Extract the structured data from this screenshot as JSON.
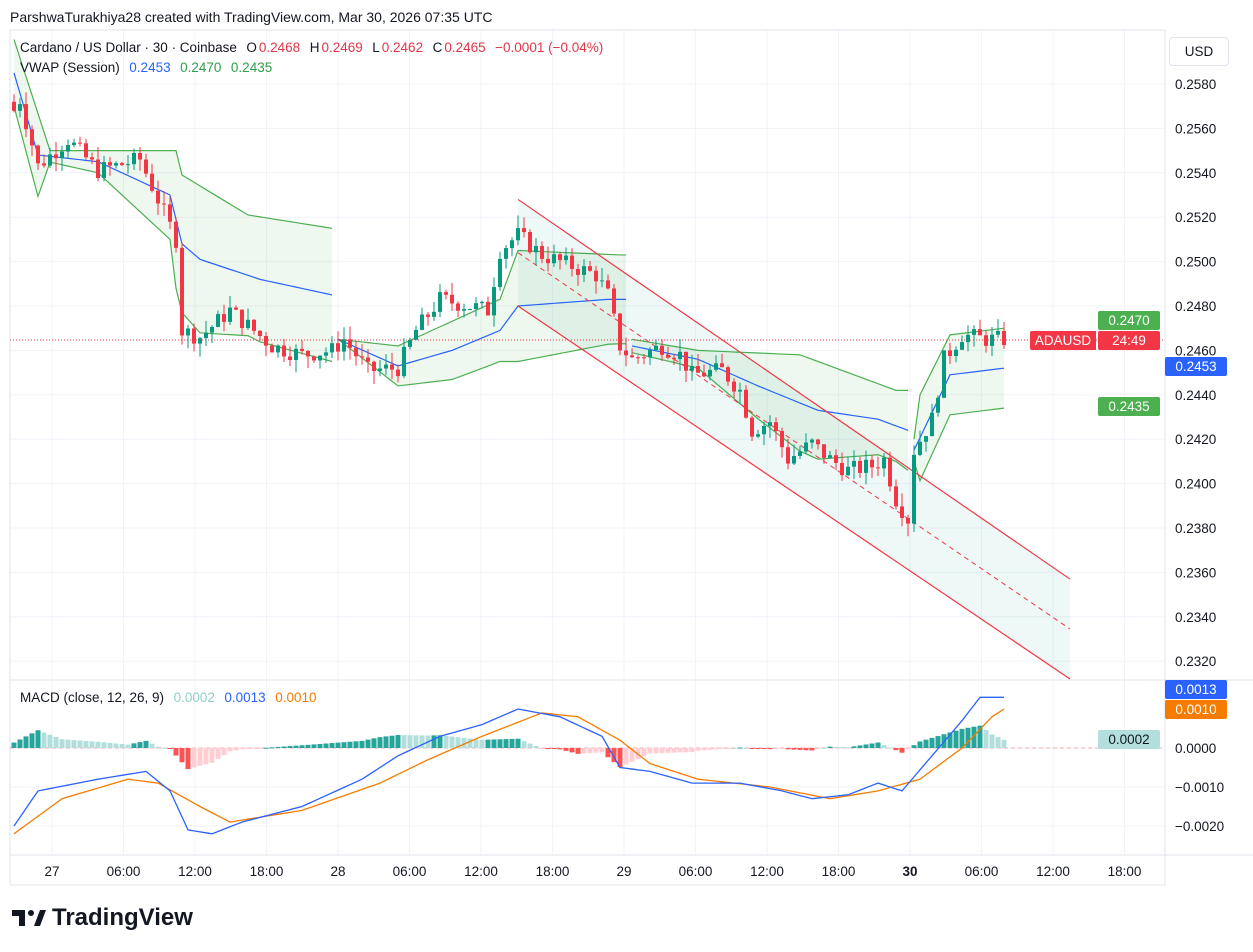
{
  "credit": "ParshwaTurakhiya28 created with TradingView.com, Mar 30, 2026 07:35 UTC",
  "legend": {
    "symbol": "Cardano / US Dollar · 30 · Coinbase",
    "o_label": "O",
    "o": "0.2468",
    "h_label": "H",
    "h": "0.2469",
    "l_label": "L",
    "l": "0.2462",
    "c_label": "C",
    "c": "0.2465",
    "change": "−0.0001 (−0.04%)",
    "vwap_label": "VWAP (Session)",
    "vwap": "0.2453",
    "vwap_upper": "0.2470",
    "vwap_lower": "0.2435",
    "macd_label": "MACD (close, 12, 26, 9)",
    "macd_hist": "0.0002",
    "macd": "0.0013",
    "macd_signal": "0.0010"
  },
  "currency_button": "USD",
  "price_tag": {
    "symbol": "ADAUSD",
    "countdown": "24:49"
  },
  "tags": {
    "upper": "0.2470",
    "vwap": "0.2453",
    "lower": "0.2435",
    "macd": "0.0013",
    "signal": "0.0010",
    "hist": "0.0002"
  },
  "logo_text": "TradingView",
  "colors": {
    "up": "#089981",
    "down": "#f23645",
    "vwap": "#2962ff",
    "band": "#4caf50",
    "channel": "#f23645",
    "macd": "#2962ff",
    "signal": "#f57c00"
  },
  "chart_data": {
    "type": "candlestick",
    "title": "Cardano / US Dollar · 30 · Coinbase",
    "interval_minutes": 30,
    "price_ticks": [
      "0.2580",
      "0.2560",
      "0.2540",
      "0.2520",
      "0.2500",
      "0.2480",
      "0.2460",
      "0.2440",
      "0.2420",
      "0.2400",
      "0.2380",
      "0.2360",
      "0.2340",
      "0.2320"
    ],
    "ylim": [
      0.231,
      0.26
    ],
    "time_ticks": [
      "27",
      "06:00",
      "12:00",
      "18:00",
      "28",
      "06:00",
      "12:00",
      "18:00",
      "29",
      "06:00",
      "12:00",
      "18:00",
      "30",
      "06:00",
      "12:00",
      "18:00"
    ],
    "bold_tick": "30",
    "bars": 166,
    "close_keypoints": [
      [
        0,
        0.2568
      ],
      [
        1,
        0.2573
      ],
      [
        4,
        0.2543
      ],
      [
        9,
        0.2555
      ],
      [
        14,
        0.2541
      ],
      [
        21,
        0.2546
      ],
      [
        24,
        0.2528
      ],
      [
        27,
        0.251
      ],
      [
        28,
        0.2469
      ],
      [
        31,
        0.2466
      ],
      [
        36,
        0.2478
      ],
      [
        43,
        0.2462
      ],
      [
        48,
        0.2458
      ],
      [
        53,
        0.246
      ],
      [
        55,
        0.2465
      ],
      [
        59,
        0.2451
      ],
      [
        64,
        0.2452
      ],
      [
        67,
        0.2469
      ],
      [
        71,
        0.2483
      ],
      [
        76,
        0.248
      ],
      [
        79,
        0.2478
      ],
      [
        81,
        0.2505
      ],
      [
        84,
        0.2512
      ],
      [
        88,
        0.2503
      ],
      [
        93,
        0.2498
      ],
      [
        97,
        0.2494
      ],
      [
        99,
        0.2485
      ],
      [
        101,
        0.2462
      ],
      [
        103,
        0.2456
      ],
      [
        108,
        0.2462
      ],
      [
        111,
        0.2458
      ],
      [
        113,
        0.2449
      ],
      [
        118,
        0.2451
      ],
      [
        121,
        0.2442
      ],
      [
        123,
        0.2424
      ],
      [
        126,
        0.2428
      ],
      [
        129,
        0.2411
      ],
      [
        133,
        0.2418
      ],
      [
        136,
        0.2411
      ],
      [
        139,
        0.2406
      ],
      [
        143,
        0.2408
      ],
      [
        145,
        0.2411
      ],
      [
        147,
        0.2393
      ],
      [
        149,
        0.2384
      ],
      [
        150,
        0.2415
      ],
      [
        153,
        0.2429
      ],
      [
        155,
        0.2456
      ],
      [
        158,
        0.2467
      ],
      [
        162,
        0.2465
      ],
      [
        165,
        0.2465
      ]
    ],
    "vwap_keypoints": [
      [
        0,
        0.2585
      ],
      [
        4,
        0.2548
      ],
      [
        14,
        0.2545
      ],
      [
        26,
        0.253
      ],
      [
        28,
        0.2508
      ],
      [
        31,
        0.2501
      ],
      [
        41,
        0.2492
      ],
      [
        53,
        0.2485
      ],
      [
        54,
        0.2465
      ],
      [
        64,
        0.2453
      ],
      [
        73,
        0.246
      ],
      [
        81,
        0.2469
      ],
      [
        84,
        0.248
      ],
      [
        99,
        0.2483
      ],
      [
        102,
        0.2483
      ],
      [
        103,
        0.2462
      ],
      [
        114,
        0.2456
      ],
      [
        124,
        0.2444
      ],
      [
        134,
        0.2433
      ],
      [
        144,
        0.2429
      ],
      [
        149,
        0.2424
      ],
      [
        150,
        0.2415
      ],
      [
        156,
        0.2449
      ],
      [
        165,
        0.2452
      ]
    ],
    "upper_band_keypoints": [
      [
        0,
        0.26
      ],
      [
        6,
        0.255
      ],
      [
        27,
        0.255
      ],
      [
        28,
        0.2539
      ],
      [
        39,
        0.2521
      ],
      [
        53,
        0.2515
      ],
      [
        54,
        0.2465
      ],
      [
        64,
        0.2462
      ],
      [
        81,
        0.2483
      ],
      [
        84,
        0.2505
      ],
      [
        101,
        0.2503
      ],
      [
        102,
        0.2503
      ],
      [
        103,
        0.2465
      ],
      [
        114,
        0.246
      ],
      [
        131,
        0.2458
      ],
      [
        147,
        0.2442
      ],
      [
        149,
        0.2442
      ],
      [
        150,
        0.242
      ],
      [
        151,
        0.244
      ],
      [
        156,
        0.2467
      ],
      [
        165,
        0.247
      ]
    ],
    "sessions_start_bars": [
      54,
      103,
      150
    ],
    "channel": {
      "start_bar": 84,
      "end_bar": 176,
      "upper": [
        0.2528,
        0.2357
      ],
      "lower": [
        0.248,
        0.2312
      ]
    },
    "macd_ticks": [
      "0.0000",
      "−0.0010",
      "−0.0020"
    ],
    "macd_ylim": [
      -0.0027,
      0.0017
    ],
    "macd_keypoints": [
      [
        0,
        -0.002
      ],
      [
        4,
        -0.0011
      ],
      [
        14,
        -0.0008
      ],
      [
        22,
        -0.0006
      ],
      [
        26,
        -0.0011
      ],
      [
        29,
        -0.0021
      ],
      [
        33,
        -0.0022
      ],
      [
        38,
        -0.0019
      ],
      [
        48,
        -0.0015
      ],
      [
        58,
        -0.0008
      ],
      [
        64,
        -0.0002
      ],
      [
        71,
        0.0003
      ],
      [
        78,
        0.0006
      ],
      [
        84,
        0.001
      ],
      [
        91,
        0.0008
      ],
      [
        98,
        0.0003
      ],
      [
        101,
        -0.0005
      ],
      [
        106,
        -0.0006
      ],
      [
        113,
        -0.0009
      ],
      [
        121,
        -0.0009
      ],
      [
        128,
        -0.0011
      ],
      [
        133,
        -0.0013
      ],
      [
        139,
        -0.0012
      ],
      [
        144,
        -0.0009
      ],
      [
        148,
        -0.0011
      ],
      [
        153,
        -0.0002
      ],
      [
        158,
        0.0007
      ],
      [
        161,
        0.0013
      ],
      [
        165,
        0.0013
      ]
    ],
    "signal_keypoints": [
      [
        0,
        -0.0022
      ],
      [
        8,
        -0.0013
      ],
      [
        19,
        -0.0008
      ],
      [
        24,
        -0.0009
      ],
      [
        31,
        -0.0015
      ],
      [
        36,
        -0.0019
      ],
      [
        48,
        -0.0016
      ],
      [
        61,
        -0.0009
      ],
      [
        69,
        -0.0003
      ],
      [
        78,
        0.0003
      ],
      [
        88,
        0.0009
      ],
      [
        94,
        0.0008
      ],
      [
        101,
        0.0002
      ],
      [
        106,
        -0.0004
      ],
      [
        114,
        -0.0008
      ],
      [
        126,
        -0.001
      ],
      [
        136,
        -0.0013
      ],
      [
        144,
        -0.0011
      ],
      [
        151,
        -0.0008
      ],
      [
        158,
        0.0
      ],
      [
        163,
        0.0008
      ],
      [
        165,
        0.001
      ]
    ]
  }
}
